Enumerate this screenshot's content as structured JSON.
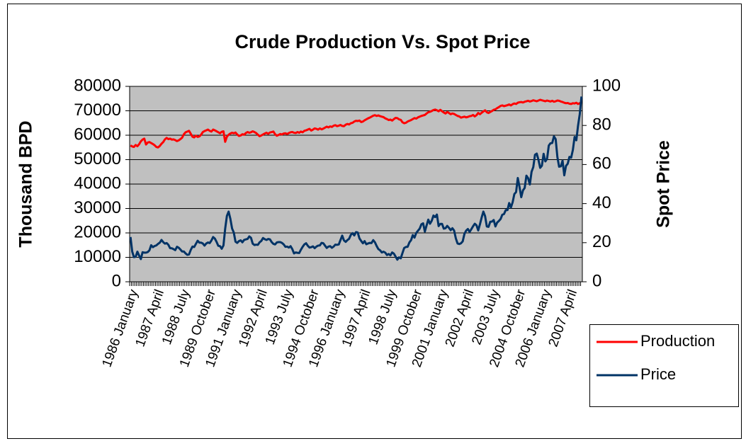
{
  "chart_data": {
    "type": "line",
    "title": "Crude Production Vs. Spot Price",
    "ylabel": "Thousand BPD",
    "y2label": "Spot Price",
    "ylim": [
      0,
      80000
    ],
    "yticks": [
      0,
      10000,
      20000,
      30000,
      40000,
      50000,
      60000,
      70000,
      80000
    ],
    "y2lim": [
      0,
      100
    ],
    "y2ticks": [
      0,
      20,
      40,
      60,
      80,
      100
    ],
    "grid": true,
    "legend": "right",
    "categories": [
      "1986 January",
      null,
      null,
      null,
      null,
      null,
      null,
      null,
      null,
      null,
      null,
      null,
      null,
      null,
      null,
      "1987 April",
      null,
      null,
      null,
      null,
      null,
      null,
      null,
      null,
      null,
      null,
      null,
      null,
      null,
      null,
      "1988 July",
      null,
      null,
      null,
      null,
      null,
      null,
      null,
      null,
      null,
      null,
      null,
      null,
      null,
      null,
      "1989 October",
      null,
      null,
      null,
      null,
      null,
      null,
      null,
      null,
      null,
      null,
      null,
      null,
      null,
      null,
      "1991 January",
      null,
      null,
      null,
      null,
      null,
      null,
      null,
      null,
      null,
      null,
      null,
      null,
      null,
      null,
      "1992 April",
      null,
      null,
      null,
      null,
      null,
      null,
      null,
      null,
      null,
      null,
      null,
      null,
      null,
      null,
      "1993 July",
      null,
      null,
      null,
      null,
      null,
      null,
      null,
      null,
      null,
      null,
      null,
      null,
      null,
      null,
      "1994 October",
      null,
      null,
      null,
      null,
      null,
      null,
      null,
      null,
      null,
      null,
      null,
      null,
      null,
      null,
      "1996 January",
      null,
      null,
      null,
      null,
      null,
      null,
      null,
      null,
      null,
      null,
      null,
      null,
      null,
      null,
      "1997 April",
      null,
      null,
      null,
      null,
      null,
      null,
      null,
      null,
      null,
      null,
      null,
      null,
      null,
      null,
      "1998 July",
      null,
      null,
      null,
      null,
      null,
      null,
      null,
      null,
      null,
      null,
      null,
      null,
      null,
      null,
      "1999 October",
      null,
      null,
      null,
      null,
      null,
      null,
      null,
      null,
      null,
      null,
      null,
      null,
      null,
      null,
      "2001 January",
      null,
      null,
      null,
      null,
      null,
      null,
      null,
      null,
      null,
      null,
      null,
      null,
      null,
      null,
      "2002 April",
      null,
      null,
      null,
      null,
      null,
      null,
      null,
      null,
      null,
      null,
      null,
      null,
      null,
      null,
      "2003 July",
      null,
      null,
      null,
      null,
      null,
      null,
      null,
      null,
      null,
      null,
      null,
      null,
      null,
      null,
      "2004 October",
      null,
      null,
      null,
      null,
      null,
      null,
      null,
      null,
      null,
      null,
      null,
      null,
      null,
      null,
      "2006 January",
      null,
      null,
      null,
      null,
      null,
      null,
      null,
      null,
      null,
      null,
      null,
      null,
      null,
      null,
      "2007 April",
      null,
      null,
      null,
      null,
      null,
      null,
      null
    ],
    "series": [
      {
        "name": "Production",
        "color": "#ff0000",
        "values": [
          55800,
          55400,
          55200,
          56000,
          55500,
          56300,
          57500,
          58200,
          58600,
          56200,
          57000,
          57200,
          56800,
          56400,
          55900,
          55200,
          55000,
          55600,
          56500,
          57200,
          58300,
          58900,
          58400,
          58600,
          58200,
          58300,
          58000,
          57600,
          57900,
          58400,
          59000,
          60400,
          61200,
          61500,
          61800,
          60600,
          59400,
          59100,
          59800,
          59300,
          59500,
          60200,
          61300,
          61700,
          62000,
          62300,
          61800,
          61500,
          62300,
          62000,
          61600,
          61200,
          60800,
          61400,
          61600,
          57300,
          59400,
          60200,
          60700,
          61000,
          60800,
          61100,
          60300,
          59700,
          59900,
          60400,
          60200,
          60900,
          61300,
          61000,
          61200,
          61600,
          61300,
          60900,
          60200,
          59600,
          59900,
          60300,
          60700,
          61000,
          60600,
          61100,
          61300,
          61500,
          60400,
          59800,
          60100,
          60500,
          60300,
          60700,
          60800,
          60500,
          60900,
          61200,
          61300,
          61000,
          60900,
          61300,
          61000,
          61500,
          61200,
          61800,
          62000,
          62300,
          62600,
          61900,
          62300,
          62800,
          62600,
          62300,
          62800,
          62400,
          62700,
          63100,
          63500,
          63200,
          63600,
          63400,
          63900,
          64100,
          63700,
          63900,
          64200,
          63800,
          63700,
          64300,
          64600,
          64400,
          64900,
          65100,
          65600,
          65900,
          65800,
          66000,
          65400,
          65600,
          66100,
          66500,
          66900,
          67200,
          67600,
          68000,
          68200,
          67900,
          68100,
          67800,
          67600,
          67400,
          66900,
          66600,
          66200,
          66400,
          66000,
          66600,
          67100,
          67000,
          66500,
          66300,
          65300,
          64900,
          65100,
          65600,
          65900,
          66200,
          66600,
          67000,
          66800,
          67300,
          67600,
          67900,
          68100,
          68300,
          68900,
          69400,
          69600,
          69900,
          70300,
          70500,
          70200,
          69800,
          70400,
          69800,
          69300,
          68900,
          69500,
          69100,
          68600,
          68900,
          68700,
          68300,
          67900,
          67700,
          67200,
          67400,
          67600,
          67300,
          67500,
          67800,
          67900,
          68300,
          67700,
          68200,
          69100,
          68600,
          69200,
          69700,
          70200,
          69400,
          69100,
          69500,
          69900,
          70400,
          70600,
          71100,
          71500,
          72000,
          72200,
          71900,
          72100,
          72300,
          72600,
          72200,
          72700,
          73000,
          72800,
          73300,
          73500,
          73600,
          73400,
          73700,
          73900,
          74100,
          73800,
          74000,
          74300,
          74100,
          73900,
          74200,
          74500,
          74300,
          74100,
          73900,
          74200,
          74000,
          73800,
          74100,
          73700,
          73900,
          74200,
          74100,
          73800,
          73600,
          73300,
          73100,
          73200,
          72900,
          72800,
          73100,
          73000,
          73300,
          72800,
          73100,
          73400
        ]
      },
      {
        "name": "Price",
        "color": "#003366",
        "axis": "y2",
        "values": [
          22.9,
          15.4,
          12.6,
          12.8,
          15.4,
          13.4,
          11.6,
          15.1,
          14.9,
          14.9,
          15.2,
          16.1,
          18.7,
          17.7,
          18.3,
          18.6,
          19.4,
          20.0,
          21.4,
          20.3,
          19.5,
          19.8,
          18.9,
          17.2,
          17.1,
          16.7,
          16.2,
          17.9,
          17.4,
          16.5,
          15.5,
          15.5,
          14.5,
          13.8,
          14.0,
          16.3,
          18.0,
          17.8,
          19.4,
          21.0,
          20.0,
          20.0,
          19.6,
          18.5,
          19.6,
          20.1,
          19.8,
          21.1,
          22.9,
          22.1,
          20.4,
          18.4,
          18.2,
          16.9,
          18.6,
          27.2,
          33.7,
          35.9,
          32.3,
          27.3,
          25.2,
          20.5,
          19.9,
          20.8,
          21.2,
          20.2,
          21.4,
          21.7,
          21.9,
          23.2,
          22.5,
          19.5,
          18.8,
          19.0,
          18.9,
          20.2,
          20.9,
          22.4,
          21.8,
          21.4,
          21.9,
          21.7,
          20.3,
          19.4,
          19.1,
          20.1,
          20.3,
          20.3,
          19.9,
          19.1,
          17.9,
          18.0,
          17.5,
          18.2,
          16.7,
          14.5,
          15.0,
          14.8,
          14.7,
          16.4,
          17.9,
          19.1,
          19.7,
          18.4,
          17.5,
          17.7,
          18.1,
          17.2,
          18.0,
          18.5,
          18.6,
          19.9,
          19.7,
          18.5,
          17.3,
          18.0,
          18.2,
          17.4,
          18.0,
          19.0,
          18.9,
          19.1,
          21.4,
          23.6,
          21.2,
          20.4,
          21.3,
          22.0,
          24.0,
          24.9,
          23.7,
          25.4,
          25.2,
          22.2,
          20.9,
          19.7,
          20.8,
          19.2,
          19.6,
          19.9,
          19.8,
          21.3,
          20.2,
          18.3,
          16.7,
          16.1,
          15.0,
          15.4,
          14.9,
          13.7,
          14.2,
          13.5,
          15.0,
          14.4,
          12.9,
          11.3,
          12.5,
          12.0,
          14.7,
          17.3,
          17.8,
          17.9,
          20.1,
          21.3,
          23.9,
          22.6,
          25.0,
          26.1,
          27.2,
          29.4,
          29.9,
          25.7,
          28.8,
          31.8,
          29.7,
          31.2,
          33.9,
          33.1,
          34.4,
          28.5,
          29.6,
          29.6,
          27.2,
          27.4,
          28.6,
          27.6,
          26.4,
          27.4,
          26.2,
          22.2,
          19.6,
          19.3,
          19.7,
          20.7,
          24.5,
          26.2,
          27.0,
          25.5,
          26.9,
          28.4,
          29.7,
          28.9,
          26.3,
          29.4,
          32.9,
          35.9,
          33.6,
          28.3,
          28.1,
          30.7,
          30.8,
          31.6,
          28.3,
          30.3,
          31.1,
          32.1,
          34.3,
          34.7,
          36.7,
          36.7,
          40.3,
          38.0,
          40.7,
          44.9,
          45.9,
          53.1,
          48.5,
          43.3,
          46.8,
          48.0,
          54.3,
          53.0,
          49.8,
          56.3,
          58.7,
          65.0,
          65.6,
          62.4,
          58.3,
          59.4,
          65.5,
          61.6,
          62.9,
          69.7,
          70.9,
          71.0,
          74.4,
          73.0,
          63.8,
          58.9,
          59.1,
          62.0,
          54.5,
          59.3,
          60.4,
          63.9,
          63.5,
          67.5,
          74.1,
          72.4,
          79.9,
          85.8,
          94.8
        ]
      }
    ]
  }
}
